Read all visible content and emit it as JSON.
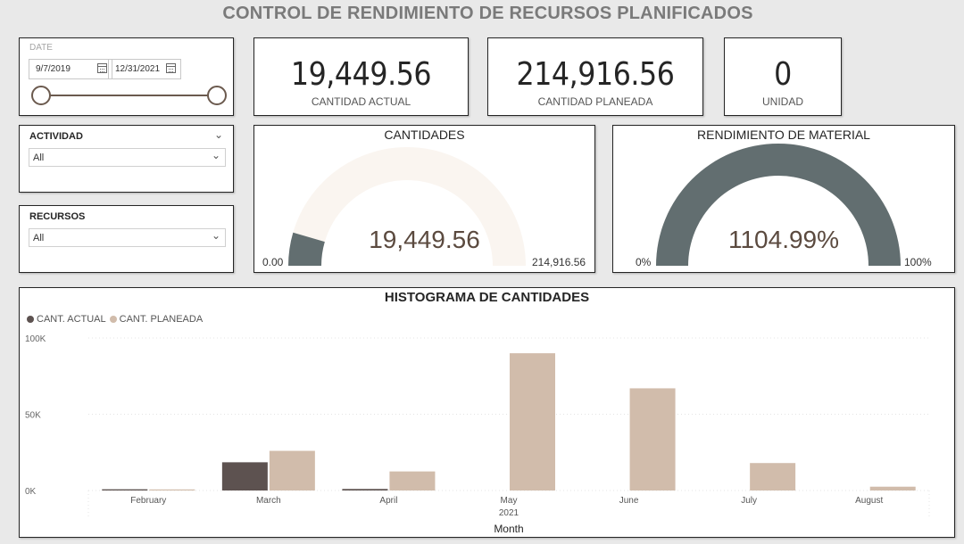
{
  "page_title": "CONTROL DE RENDIMIENTO DE RECURSOS PLANIFICADOS",
  "date_slicer": {
    "caption": "DATE",
    "start": "9/7/2019",
    "end": "12/31/2021"
  },
  "kpis": [
    {
      "value": "19,449.56",
      "label": "CANTIDAD ACTUAL"
    },
    {
      "value": "214,916.56",
      "label": "CANTIDAD PLANEADA"
    },
    {
      "value": "0",
      "label": "UNIDAD"
    }
  ],
  "slicers": {
    "actividad": {
      "title": "ACTIVIDAD",
      "selected": "All"
    },
    "recursos": {
      "title": "RECURSOS",
      "selected": "All"
    }
  },
  "gauges": {
    "cantidades": {
      "title": "CANTIDADES",
      "value_label": "19,449.56",
      "min_label": "0.00",
      "max_label": "214,916.56",
      "value": 19449.56,
      "min": 0,
      "max": 214916.56,
      "fill_color": "#626e70",
      "track_color": "#faf5f0"
    },
    "rendimiento": {
      "title": "RENDIMIENTO DE MATERIAL",
      "value_label": "1104.99%",
      "min_label": "0%",
      "max_label": "100%",
      "value": 1104.99,
      "min": 0,
      "max": 100,
      "fill_color": "#626e70",
      "track_color": "#faf5f0"
    }
  },
  "chart_data": {
    "type": "bar",
    "title": "HISTOGRAMA DE CANTIDADES",
    "categories": [
      "February",
      "March",
      "April",
      "May",
      "June",
      "July",
      "August"
    ],
    "year_label": "2021",
    "xlabel": "Month",
    "ylabel": "",
    "ylim": [
      0,
      100000
    ],
    "y_ticks": [
      {
        "value": 0,
        "label": "0K"
      },
      {
        "value": 50000,
        "label": "50K"
      },
      {
        "value": 100000,
        "label": "100K"
      }
    ],
    "legend_position": "top-left",
    "series": [
      {
        "name": "CANT. ACTUAL",
        "color": "#5d5250",
        "values": [
          800,
          18500,
          1000,
          0,
          0,
          0,
          0
        ]
      },
      {
        "name": "CANT. PLANEADA",
        "color": "#d1bcab",
        "values": [
          400,
          26000,
          12500,
          90000,
          67000,
          18000,
          2500
        ]
      }
    ]
  }
}
